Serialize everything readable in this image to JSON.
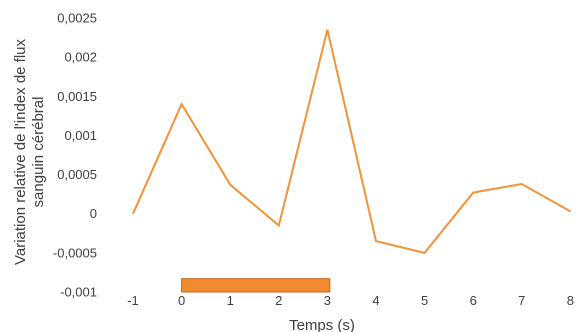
{
  "chart_data": {
    "type": "line",
    "xlabel": "Temps (s)",
    "ylabel_lines": [
      "Variation relative de l'index de flux",
      "sanguin cérébral"
    ],
    "x": [
      -1,
      0,
      1,
      2,
      3,
      4,
      5,
      6,
      7,
      8
    ],
    "x_tick_labels": [
      "-1",
      "0",
      "1",
      "2",
      "3",
      "4",
      "5",
      "6",
      "7",
      "8"
    ],
    "series": [
      {
        "values": [
          0,
          0.0014,
          0.00037,
          -0.00015,
          0.00235,
          -0.00035,
          -0.0005,
          0.00027,
          0.00038,
          3e-05
        ]
      }
    ],
    "ylim": [
      -0.001,
      0.0025
    ],
    "y_ticks": [
      -0.001,
      -0.0005,
      0,
      0.0005,
      0.001,
      0.0015,
      0.002,
      0.0025
    ],
    "y_tick_labels": [
      "-0,001",
      "-0,0005",
      "0",
      "0,0005",
      "0,001",
      "0,0015",
      "0,002",
      "0,0025"
    ],
    "grid": false,
    "legend": "none",
    "stimulus_bar": {
      "x_start": 0,
      "x_end": 3.05,
      "y_top": -0.00083,
      "y_bottom": -0.001
    },
    "colors": {
      "series": "#f39237",
      "stimulus_bar": "#f28a30",
      "stimulus_bar_border": "#c9651a",
      "text": "#404040"
    }
  }
}
